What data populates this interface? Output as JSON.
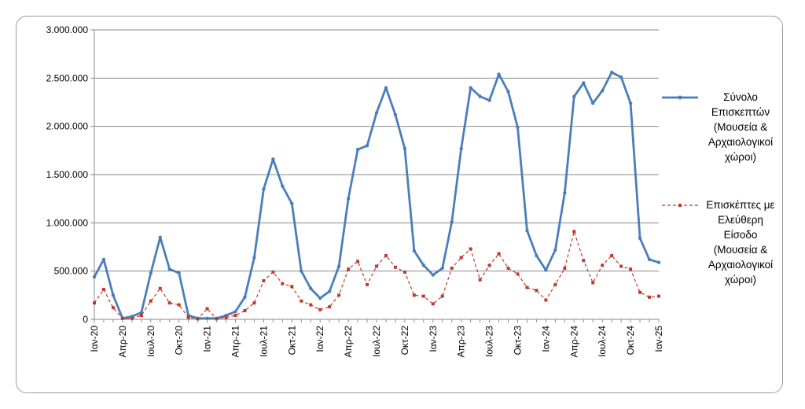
{
  "chart_data": {
    "type": "line",
    "title": "",
    "xlabel": "",
    "ylabel": "",
    "ylim": [
      0,
      3000000
    ],
    "y_ticks": [
      "3.000.000",
      "2.500.000",
      "2.000.000",
      "1.500.000",
      "1.000.000",
      "500.000",
      "0"
    ],
    "y_tick_values": [
      3000000,
      2500000,
      2000000,
      1500000,
      1000000,
      500000,
      0
    ],
    "x_tick_labels": [
      "Ιαν-20",
      "Απρ-20",
      "Ιουλ-20",
      "Οκτ-20",
      "Ιαν-21",
      "Απρ-21",
      "Ιουλ-21",
      "Οκτ-21",
      "Ιαν-22",
      "Απρ-22",
      "Ιουλ-22",
      "Οκτ-22",
      "Ιαν-23",
      "Απρ-23",
      "Ιουλ-23",
      "Οκτ-23",
      "Ιαν-24",
      "Απρ-24",
      "Ιουλ-24",
      "Οκτ-24",
      "Ιαν-25"
    ],
    "grid": true,
    "legend_position": "right",
    "series": [
      {
        "name": "Σύνολο Επισκεπτών (Μουσεία & Αρχαιολογικοί χώροι)",
        "legend_lines": [
          "Σύνολο",
          "Επισκεπτών",
          "(Μουσεία &",
          "Αρχαιολογικοί",
          "χώροι)"
        ],
        "color": "#4a7ebb",
        "style": "solid",
        "values": [
          440000,
          620000,
          250000,
          10000,
          30000,
          70000,
          480000,
          850000,
          520000,
          480000,
          40000,
          10000,
          10000,
          10000,
          40000,
          80000,
          230000,
          640000,
          1350000,
          1660000,
          1380000,
          1200000,
          500000,
          320000,
          220000,
          290000,
          550000,
          1250000,
          1760000,
          1800000,
          2140000,
          2400000,
          2120000,
          1770000,
          710000,
          560000,
          460000,
          530000,
          1010000,
          1770000,
          2400000,
          2310000,
          2270000,
          2540000,
          2360000,
          1990000,
          920000,
          660000,
          510000,
          720000,
          1310000,
          2310000,
          2450000,
          2240000,
          2370000,
          2560000,
          2510000,
          2240000,
          840000,
          620000,
          590000
        ]
      },
      {
        "name": "Επισκέπτες με Ελεύθερη Είσοδο (Μουσεία & Αρχαιολογικοί χώροι)",
        "legend_lines": [
          "Επισκέπτες με",
          "Ελεύθερη",
          "Είσοδο",
          "(Μουσεία &",
          "Αρχαιολογικοί",
          "χώροι)"
        ],
        "color": "#c0392b",
        "style": "dashed",
        "values": [
          170000,
          310000,
          120000,
          10000,
          10000,
          40000,
          190000,
          320000,
          170000,
          150000,
          20000,
          5000,
          110000,
          5000,
          20000,
          40000,
          90000,
          170000,
          400000,
          490000,
          370000,
          340000,
          190000,
          150000,
          100000,
          130000,
          250000,
          520000,
          600000,
          360000,
          550000,
          660000,
          540000,
          490000,
          250000,
          240000,
          160000,
          240000,
          530000,
          640000,
          730000,
          410000,
          560000,
          680000,
          530000,
          470000,
          330000,
          300000,
          200000,
          360000,
          530000,
          910000,
          610000,
          380000,
          560000,
          660000,
          550000,
          520000,
          280000,
          230000,
          240000
        ]
      }
    ]
  }
}
